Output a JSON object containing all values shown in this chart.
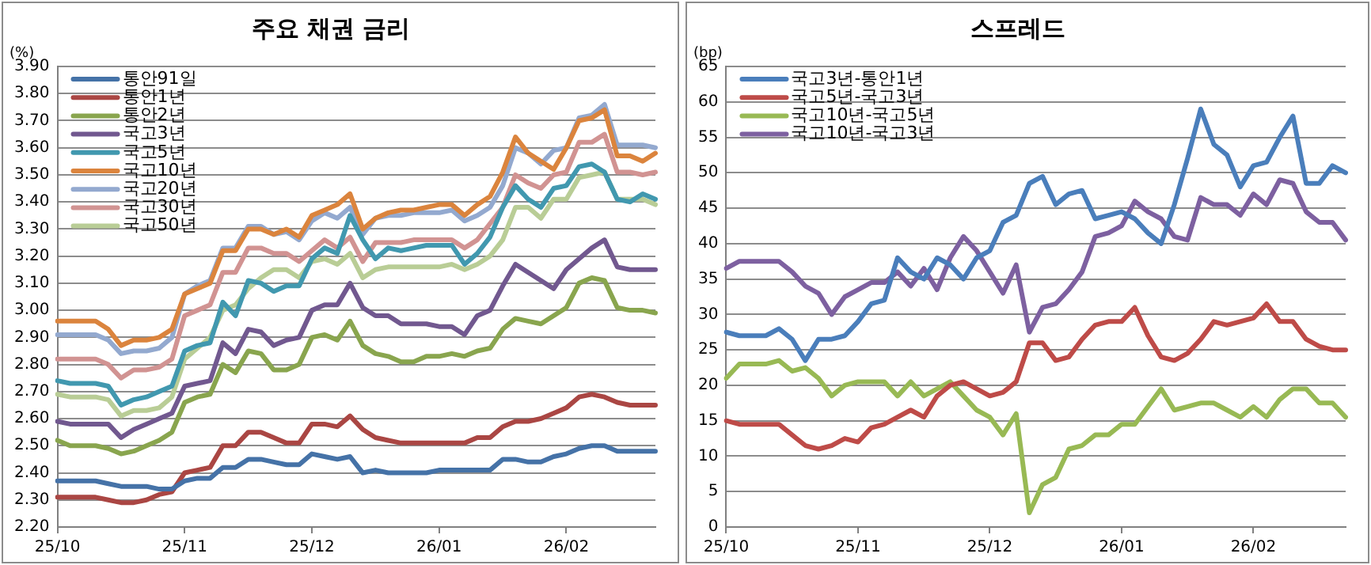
{
  "chart_data": [
    {
      "type": "line",
      "title": "주요 채권 금리",
      "ylabel": "(%)",
      "categories": [
        "25/10",
        null,
        null,
        null,
        null,
        null,
        null,
        null,
        null,
        null,
        "25/11",
        null,
        null,
        null,
        null,
        null,
        null,
        null,
        null,
        null,
        "25/12",
        null,
        null,
        null,
        null,
        null,
        null,
        null,
        null,
        null,
        "26/01",
        null,
        null,
        null,
        null,
        null,
        null,
        null,
        null,
        null,
        "26/02",
        null,
        null,
        null,
        null,
        null,
        null,
        null
      ],
      "ylim": [
        2.2,
        3.9
      ],
      "yticks": [
        {
          "value": 2.2,
          "label": "2.20"
        },
        {
          "value": 2.3,
          "label": "2.30"
        },
        {
          "value": 2.4,
          "label": "2.40"
        },
        {
          "value": 2.5,
          "label": "2.50"
        },
        {
          "value": 2.6,
          "label": "2.60"
        },
        {
          "value": 2.7,
          "label": "2.70"
        },
        {
          "value": 2.8,
          "label": "2.80"
        },
        {
          "value": 2.9,
          "label": "2.90"
        },
        {
          "value": 3.0,
          "label": "3.00"
        },
        {
          "value": 3.1,
          "label": "3.10"
        },
        {
          "value": 3.2,
          "label": "3.20"
        },
        {
          "value": 3.3,
          "label": "3.30"
        },
        {
          "value": 3.4,
          "label": "3.40"
        },
        {
          "value": 3.5,
          "label": "3.50"
        },
        {
          "value": 3.6,
          "label": "3.60"
        },
        {
          "value": 3.7,
          "label": "3.70"
        },
        {
          "value": 3.8,
          "label": "3.80"
        },
        {
          "value": 3.9,
          "label": "3.90"
        }
      ],
      "grid": "y",
      "legend": "top left",
      "series": [
        {
          "name": "통안91일",
          "color": "#4572a7",
          "values": [
            2.37,
            2.37,
            2.37,
            2.37,
            2.36,
            2.35,
            2.35,
            2.35,
            2.34,
            2.34,
            2.37,
            2.38,
            2.38,
            2.42,
            2.42,
            2.45,
            2.45,
            2.44,
            2.43,
            2.43,
            2.47,
            2.46,
            2.45,
            2.46,
            2.4,
            2.41,
            2.4,
            2.4,
            2.4,
            2.4,
            2.41,
            2.41,
            2.41,
            2.41,
            2.41,
            2.45,
            2.45,
            2.44,
            2.44,
            2.46,
            2.47,
            2.49,
            2.5,
            2.5,
            2.48,
            2.48,
            2.48,
            2.48
          ]
        },
        {
          "name": "통안1년",
          "color": "#aa4643",
          "values": [
            2.31,
            2.31,
            2.31,
            2.31,
            2.3,
            2.29,
            2.29,
            2.3,
            2.32,
            2.33,
            2.4,
            2.41,
            2.42,
            2.5,
            2.5,
            2.55,
            2.55,
            2.53,
            2.51,
            2.51,
            2.58,
            2.58,
            2.57,
            2.61,
            2.56,
            2.53,
            2.52,
            2.51,
            2.51,
            2.51,
            2.51,
            2.51,
            2.51,
            2.53,
            2.53,
            2.57,
            2.59,
            2.59,
            2.6,
            2.62,
            2.64,
            2.68,
            2.69,
            2.68,
            2.66,
            2.65,
            2.65,
            2.65
          ]
        },
        {
          "name": "통안2년",
          "color": "#89a54e",
          "values": [
            2.52,
            2.5,
            2.5,
            2.5,
            2.49,
            2.47,
            2.48,
            2.5,
            2.52,
            2.55,
            2.66,
            2.68,
            2.69,
            2.8,
            2.77,
            2.85,
            2.84,
            2.78,
            2.78,
            2.8,
            2.9,
            2.91,
            2.89,
            2.96,
            2.87,
            2.84,
            2.83,
            2.81,
            2.81,
            2.83,
            2.83,
            2.84,
            2.83,
            2.85,
            2.86,
            2.93,
            2.97,
            2.96,
            2.95,
            2.98,
            3.01,
            3.1,
            3.12,
            3.11,
            3.01,
            3.0,
            3.0,
            2.99
          ]
        },
        {
          "name": "국고3년",
          "color": "#71588f",
          "values": [
            2.59,
            2.58,
            2.58,
            2.58,
            2.58,
            2.53,
            2.56,
            2.58,
            2.6,
            2.62,
            2.72,
            2.73,
            2.74,
            2.88,
            2.84,
            2.93,
            2.92,
            2.87,
            2.89,
            2.9,
            3.0,
            3.02,
            3.02,
            3.1,
            3.01,
            2.98,
            2.98,
            2.95,
            2.95,
            2.95,
            2.94,
            2.94,
            2.91,
            2.98,
            3.0,
            3.09,
            3.17,
            3.14,
            3.11,
            3.08,
            3.15,
            3.19,
            3.23,
            3.26,
            3.16,
            3.15,
            3.15,
            3.15
          ]
        },
        {
          "name": "국고5년",
          "color": "#4198af",
          "values": [
            2.74,
            2.73,
            2.73,
            2.73,
            2.72,
            2.65,
            2.67,
            2.68,
            2.7,
            2.72,
            2.85,
            2.87,
            2.88,
            3.03,
            2.98,
            3.11,
            3.1,
            3.07,
            3.09,
            3.09,
            3.19,
            3.23,
            3.21,
            3.35,
            3.26,
            3.19,
            3.23,
            3.22,
            3.23,
            3.24,
            3.24,
            3.24,
            3.17,
            3.21,
            3.27,
            3.38,
            3.46,
            3.41,
            3.38,
            3.45,
            3.46,
            3.53,
            3.54,
            3.51,
            3.41,
            3.4,
            3.43,
            3.41
          ]
        },
        {
          "name": "국고10년",
          "color": "#db843d",
          "values": [
            2.96,
            2.96,
            2.96,
            2.96,
            2.93,
            2.87,
            2.89,
            2.89,
            2.9,
            2.93,
            3.06,
            3.08,
            3.1,
            3.22,
            3.22,
            3.3,
            3.3,
            3.28,
            3.3,
            3.27,
            3.35,
            3.37,
            3.39,
            3.43,
            3.3,
            3.34,
            3.36,
            3.37,
            3.37,
            3.38,
            3.39,
            3.39,
            3.35,
            3.39,
            3.42,
            3.51,
            3.64,
            3.58,
            3.55,
            3.52,
            3.6,
            3.7,
            3.71,
            3.74,
            3.57,
            3.57,
            3.55,
            3.58
          ]
        },
        {
          "name": "국고20년",
          "color": "#93a9cf",
          "values": [
            2.91,
            2.91,
            2.91,
            2.91,
            2.89,
            2.84,
            2.85,
            2.85,
            2.86,
            2.9,
            3.06,
            3.09,
            3.11,
            3.23,
            3.23,
            3.31,
            3.31,
            3.28,
            3.29,
            3.26,
            3.33,
            3.36,
            3.34,
            3.38,
            3.28,
            3.34,
            3.35,
            3.35,
            3.36,
            3.36,
            3.36,
            3.37,
            3.33,
            3.35,
            3.38,
            3.46,
            3.6,
            3.58,
            3.54,
            3.59,
            3.6,
            3.71,
            3.72,
            3.76,
            3.61,
            3.61,
            3.61,
            3.6
          ]
        },
        {
          "name": "국고30년",
          "color": "#d19392",
          "values": [
            2.82,
            2.82,
            2.82,
            2.82,
            2.8,
            2.75,
            2.78,
            2.78,
            2.79,
            2.82,
            2.98,
            3.0,
            3.02,
            3.14,
            3.14,
            3.23,
            3.23,
            3.21,
            3.21,
            3.18,
            3.22,
            3.26,
            3.23,
            3.27,
            3.18,
            3.25,
            3.25,
            3.25,
            3.26,
            3.26,
            3.26,
            3.26,
            3.23,
            3.26,
            3.32,
            3.38,
            3.5,
            3.47,
            3.45,
            3.5,
            3.51,
            3.62,
            3.62,
            3.65,
            3.51,
            3.51,
            3.5,
            3.51
          ]
        },
        {
          "name": "국고50년",
          "color": "#b9cd96",
          "values": [
            2.69,
            2.68,
            2.68,
            2.68,
            2.67,
            2.61,
            2.63,
            2.63,
            2.64,
            2.68,
            2.82,
            2.86,
            2.9,
            3.0,
            3.02,
            3.08,
            3.12,
            3.15,
            3.15,
            3.12,
            3.18,
            3.19,
            3.17,
            3.21,
            3.12,
            3.15,
            3.16,
            3.16,
            3.16,
            3.16,
            3.16,
            3.17,
            3.15,
            3.17,
            3.2,
            3.26,
            3.38,
            3.38,
            3.34,
            3.41,
            3.41,
            3.49,
            3.5,
            3.51,
            3.41,
            3.41,
            3.41,
            3.39
          ]
        }
      ]
    },
    {
      "type": "line",
      "title": "스프레드",
      "ylabel": "(bp)",
      "categories": [
        "25/10",
        null,
        null,
        null,
        null,
        null,
        null,
        null,
        null,
        null,
        "25/11",
        null,
        null,
        null,
        null,
        null,
        null,
        null,
        null,
        null,
        "25/12",
        null,
        null,
        null,
        null,
        null,
        null,
        null,
        null,
        null,
        "26/01",
        null,
        null,
        null,
        null,
        null,
        null,
        null,
        null,
        null,
        "26/02",
        null,
        null,
        null,
        null,
        null,
        null,
        null
      ],
      "ylim": [
        0,
        65
      ],
      "yticks": [
        0,
        5,
        10,
        15,
        20,
        25,
        30,
        35,
        40,
        45,
        50,
        55,
        60,
        65
      ],
      "grid": "y",
      "legend": "top left",
      "series": [
        {
          "name": "국고3년-통안1년",
          "color": "#4a7ebb",
          "values": [
            27.5,
            27,
            27,
            27,
            28,
            26.5,
            23.5,
            26.5,
            26.5,
            27,
            29,
            31.5,
            32,
            38,
            36,
            35,
            38,
            37,
            35,
            38,
            39,
            43,
            44,
            48.5,
            49.5,
            45.5,
            47,
            47.5,
            43.5,
            44,
            44.5,
            43.5,
            41.5,
            40,
            45.5,
            52,
            59,
            54,
            52.5,
            48,
            51,
            51.5,
            55,
            58,
            48.5,
            48.5,
            51,
            50
          ]
        },
        {
          "name": "국고5년-국고3년",
          "color": "#be4b48",
          "values": [
            15,
            14.5,
            14.5,
            14.5,
            14.5,
            13,
            11.5,
            11,
            11.5,
            12.5,
            12,
            14,
            14.5,
            15.5,
            16.5,
            15.5,
            18.5,
            20,
            20.5,
            19.5,
            18.5,
            19,
            20.5,
            26,
            26,
            23.5,
            24,
            26.5,
            28.5,
            29,
            29,
            31,
            27,
            24,
            23.5,
            24.5,
            26.5,
            29,
            28.5,
            29,
            29.5,
            31.5,
            29,
            29,
            26.5,
            25.5,
            25,
            25
          ]
        },
        {
          "name": "국고10년-국고5년",
          "color": "#98b954",
          "values": [
            21,
            23,
            23,
            23,
            23.5,
            22,
            22.5,
            21,
            18.5,
            20,
            20.5,
            20.5,
            20.5,
            18.5,
            20.5,
            18.5,
            19.5,
            20.5,
            18.5,
            16.5,
            15.5,
            13,
            16,
            2,
            6,
            7,
            11,
            11.5,
            13,
            13,
            14.5,
            14.5,
            17,
            19.5,
            16.5,
            17,
            17.5,
            17.5,
            16.5,
            15.5,
            17,
            15.5,
            18,
            19.5,
            19.5,
            17.5,
            17.5,
            15.5
          ]
        },
        {
          "name": "국고10년-국고3년",
          "color": "#7d60a0",
          "values": [
            36.5,
            37.5,
            37.5,
            37.5,
            37.5,
            36,
            34,
            33,
            30,
            32.5,
            33.5,
            34.5,
            34.5,
            36,
            34,
            36.5,
            33.5,
            38,
            41,
            39,
            36,
            33,
            37,
            27.5,
            31,
            31.5,
            33.5,
            36,
            41,
            41.5,
            42.5,
            46,
            44.5,
            43.5,
            41,
            40.5,
            46.5,
            45.5,
            45.5,
            44,
            47,
            45.5,
            49,
            48.5,
            44.5,
            43,
            43,
            40.5
          ]
        }
      ]
    }
  ]
}
